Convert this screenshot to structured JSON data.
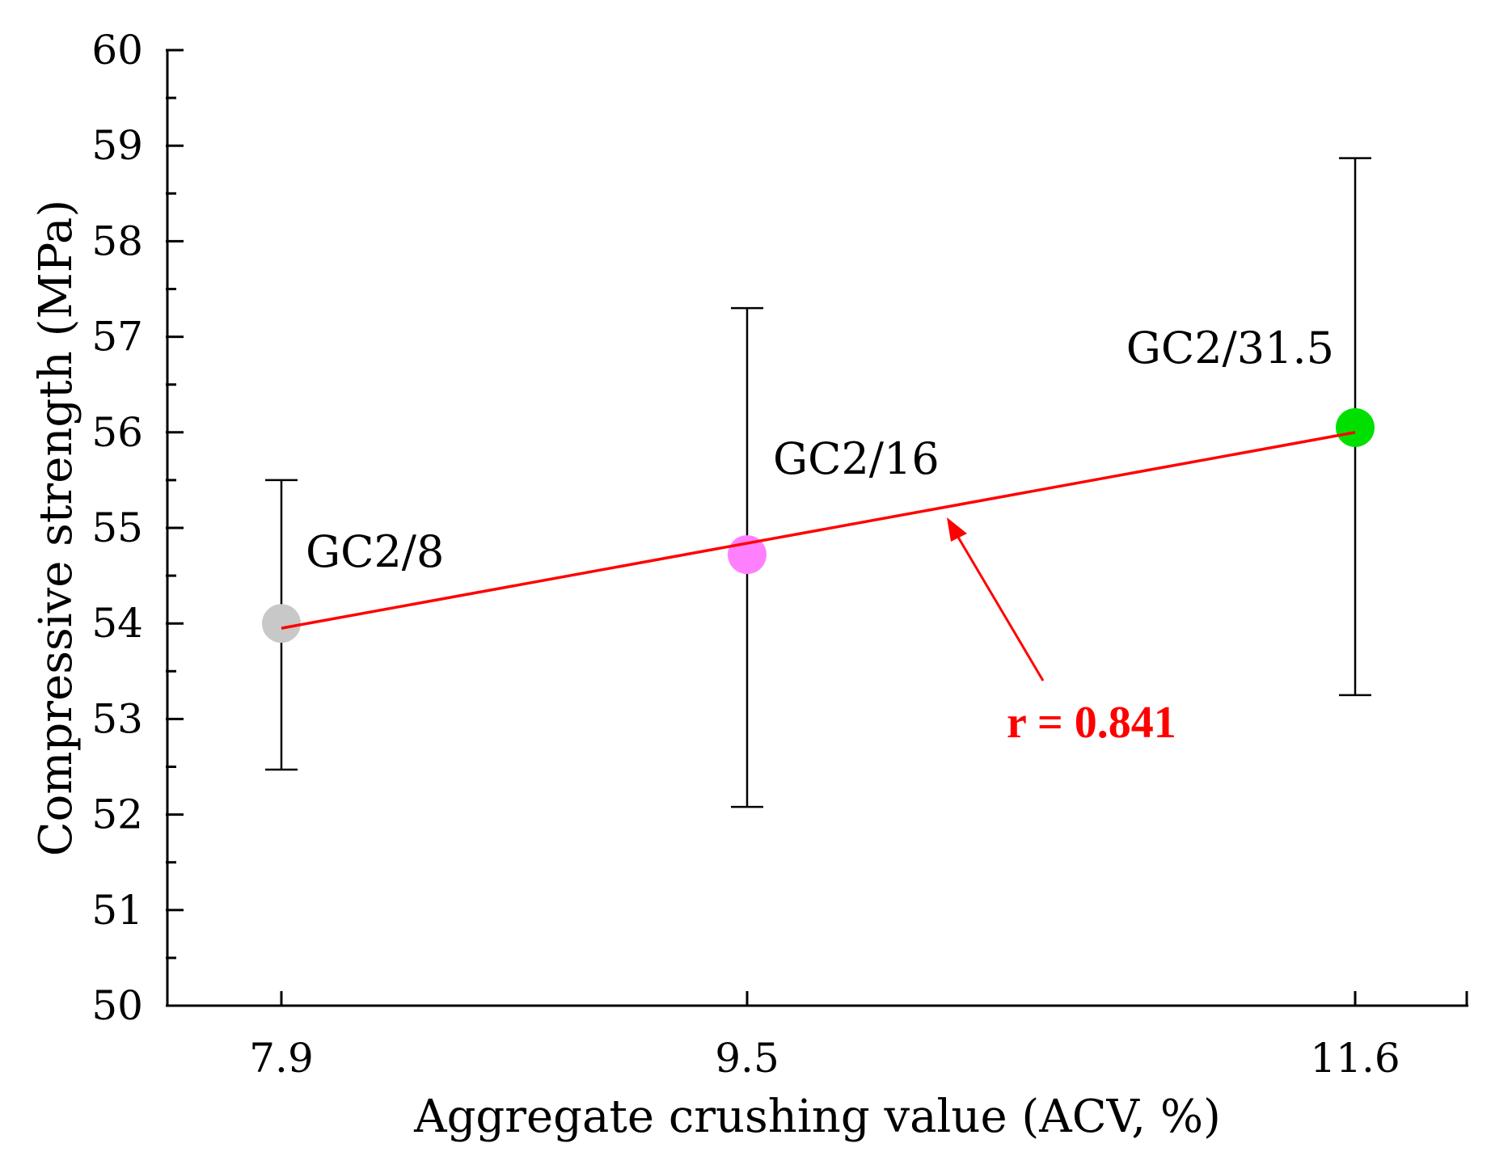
{
  "chart_data": {
    "type": "scatter",
    "title": "",
    "xlabel": "Aggregate crushing value (ACV, %)",
    "ylabel": "Compressive strength (MPa)",
    "x_categories": [
      "7.9",
      "9.5",
      "11.6"
    ],
    "ylim": [
      50,
      60
    ],
    "y_ticks": [
      "50",
      "51",
      "52",
      "53",
      "54",
      "55",
      "56",
      "57",
      "58",
      "59",
      "60"
    ],
    "points": [
      {
        "label": "GC2/8",
        "x": 7.9,
        "y": 54.0,
        "err_low": 52.47,
        "err_high": 55.5,
        "color": "#c8c8c8"
      },
      {
        "label": "GC2/16",
        "x": 9.5,
        "y": 54.72,
        "err_low": 52.08,
        "err_high": 57.3,
        "color": "#ff80ff"
      },
      {
        "label": "GC2/31.5",
        "x": 11.6,
        "y": 56.05,
        "err_low": 53.25,
        "err_high": 58.87,
        "color": "#00e000"
      }
    ],
    "fit_line": {
      "x": [
        7.9,
        11.6
      ],
      "y": [
        53.95,
        56.0
      ],
      "color": "#ff0000"
    },
    "annotation": {
      "text": "r = 0.841",
      "color": "#ff0000"
    },
    "grid": false,
    "legend": "none"
  }
}
